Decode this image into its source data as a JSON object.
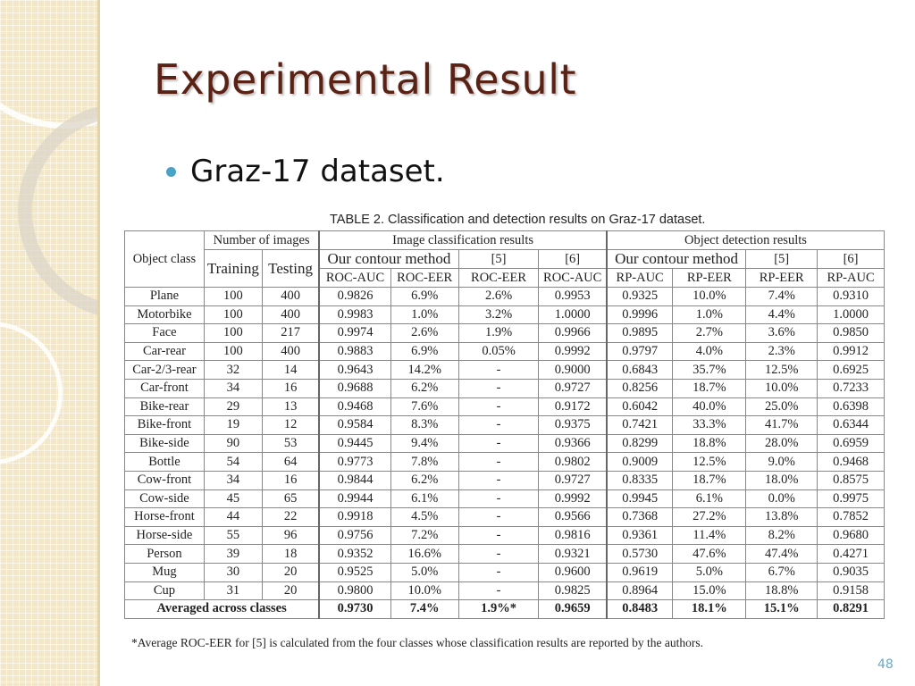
{
  "slide": {
    "title": "Experimental Result",
    "bullet": "Graz-17 dataset.",
    "page_number": "48"
  },
  "table": {
    "caption": "TABLE 2. Classification and detection results on Graz-17 dataset.",
    "headers": {
      "object_class": "Object class",
      "number_of_images": "Number of images",
      "training": "Training",
      "testing": "Testing",
      "image_classification": "Image classification results",
      "object_detection": "Object detection results",
      "our_contour_cls": "Our contour method",
      "ref5_cls": "[5]",
      "ref6_cls": "[6]",
      "our_contour_det": "Our contour method",
      "ref5_det": "[5]",
      "ref6_det": "[6]",
      "roc_auc_1": "ROC-AUC",
      "roc_eer_1": "ROC-EER",
      "roc_eer_2": "ROC-EER",
      "roc_auc_2": "ROC-AUC",
      "rp_auc_1": "RP-AUC",
      "rp_eer_1": "RP-EER",
      "rp_eer_2": "RP-EER",
      "rp_auc_2": "RP-AUC"
    },
    "rows": [
      [
        "Plane",
        "100",
        "400",
        "0.9826",
        "6.9%",
        "2.6%",
        "0.9953",
        "0.9325",
        "10.0%",
        "7.4%",
        "0.9310"
      ],
      [
        "Motorbike",
        "100",
        "400",
        "0.9983",
        "1.0%",
        "3.2%",
        "1.0000",
        "0.9996",
        "1.0%",
        "4.4%",
        "1.0000"
      ],
      [
        "Face",
        "100",
        "217",
        "0.9974",
        "2.6%",
        "1.9%",
        "0.9966",
        "0.9895",
        "2.7%",
        "3.6%",
        "0.9850"
      ],
      [
        "Car-rear",
        "100",
        "400",
        "0.9883",
        "6.9%",
        "0.05%",
        "0.9992",
        "0.9797",
        "4.0%",
        "2.3%",
        "0.9912"
      ],
      [
        "Car-2/3-rear",
        "32",
        "14",
        "0.9643",
        "14.2%",
        "-",
        "0.9000",
        "0.6843",
        "35.7%",
        "12.5%",
        "0.6925"
      ],
      [
        "Car-front",
        "34",
        "16",
        "0.9688",
        "6.2%",
        "-",
        "0.9727",
        "0.8256",
        "18.7%",
        "10.0%",
        "0.7233"
      ],
      [
        "Bike-rear",
        "29",
        "13",
        "0.9468",
        "7.6%",
        "-",
        "0.9172",
        "0.6042",
        "40.0%",
        "25.0%",
        "0.6398"
      ],
      [
        "Bike-front",
        "19",
        "12",
        "0.9584",
        "8.3%",
        "-",
        "0.9375",
        "0.7421",
        "33.3%",
        "41.7%",
        "0.6344"
      ],
      [
        "Bike-side",
        "90",
        "53",
        "0.9445",
        "9.4%",
        "-",
        "0.9366",
        "0.8299",
        "18.8%",
        "28.0%",
        "0.6959"
      ],
      [
        "Bottle",
        "54",
        "64",
        "0.9773",
        "7.8%",
        "-",
        "0.9802",
        "0.9009",
        "12.5%",
        "9.0%",
        "0.9468"
      ],
      [
        "Cow-front",
        "34",
        "16",
        "0.9844",
        "6.2%",
        "-",
        "0.9727",
        "0.8335",
        "18.7%",
        "18.0%",
        "0.8575"
      ],
      [
        "Cow-side",
        "45",
        "65",
        "0.9944",
        "6.1%",
        "-",
        "0.9992",
        "0.9945",
        "6.1%",
        "0.0%",
        "0.9975"
      ],
      [
        "Horse-front",
        "44",
        "22",
        "0.9918",
        "4.5%",
        "-",
        "0.9566",
        "0.7368",
        "27.2%",
        "13.8%",
        "0.7852"
      ],
      [
        "Horse-side",
        "55",
        "96",
        "0.9756",
        "7.2%",
        "-",
        "0.9816",
        "0.9361",
        "11.4%",
        "8.2%",
        "0.9680"
      ],
      [
        "Person",
        "39",
        "18",
        "0.9352",
        "16.6%",
        "-",
        "0.9321",
        "0.5730",
        "47.6%",
        "47.4%",
        "0.4271"
      ],
      [
        "Mug",
        "30",
        "20",
        "0.9525",
        "5.0%",
        "-",
        "0.9600",
        "0.9619",
        "5.0%",
        "6.7%",
        "0.9035"
      ],
      [
        "Cup",
        "31",
        "20",
        "0.9800",
        "10.0%",
        "-",
        "0.9825",
        "0.8964",
        "15.0%",
        "18.8%",
        "0.9158"
      ]
    ],
    "average_row": [
      "Averaged across classes",
      "0.9730",
      "7.4%",
      "1.9%*",
      "0.9659",
      "0.8483",
      "18.1%",
      "15.1%",
      "0.8291"
    ],
    "footnote": "*Average ROC-EER for [5] is calculated from the four classes whose classification results are reported by the authors."
  }
}
